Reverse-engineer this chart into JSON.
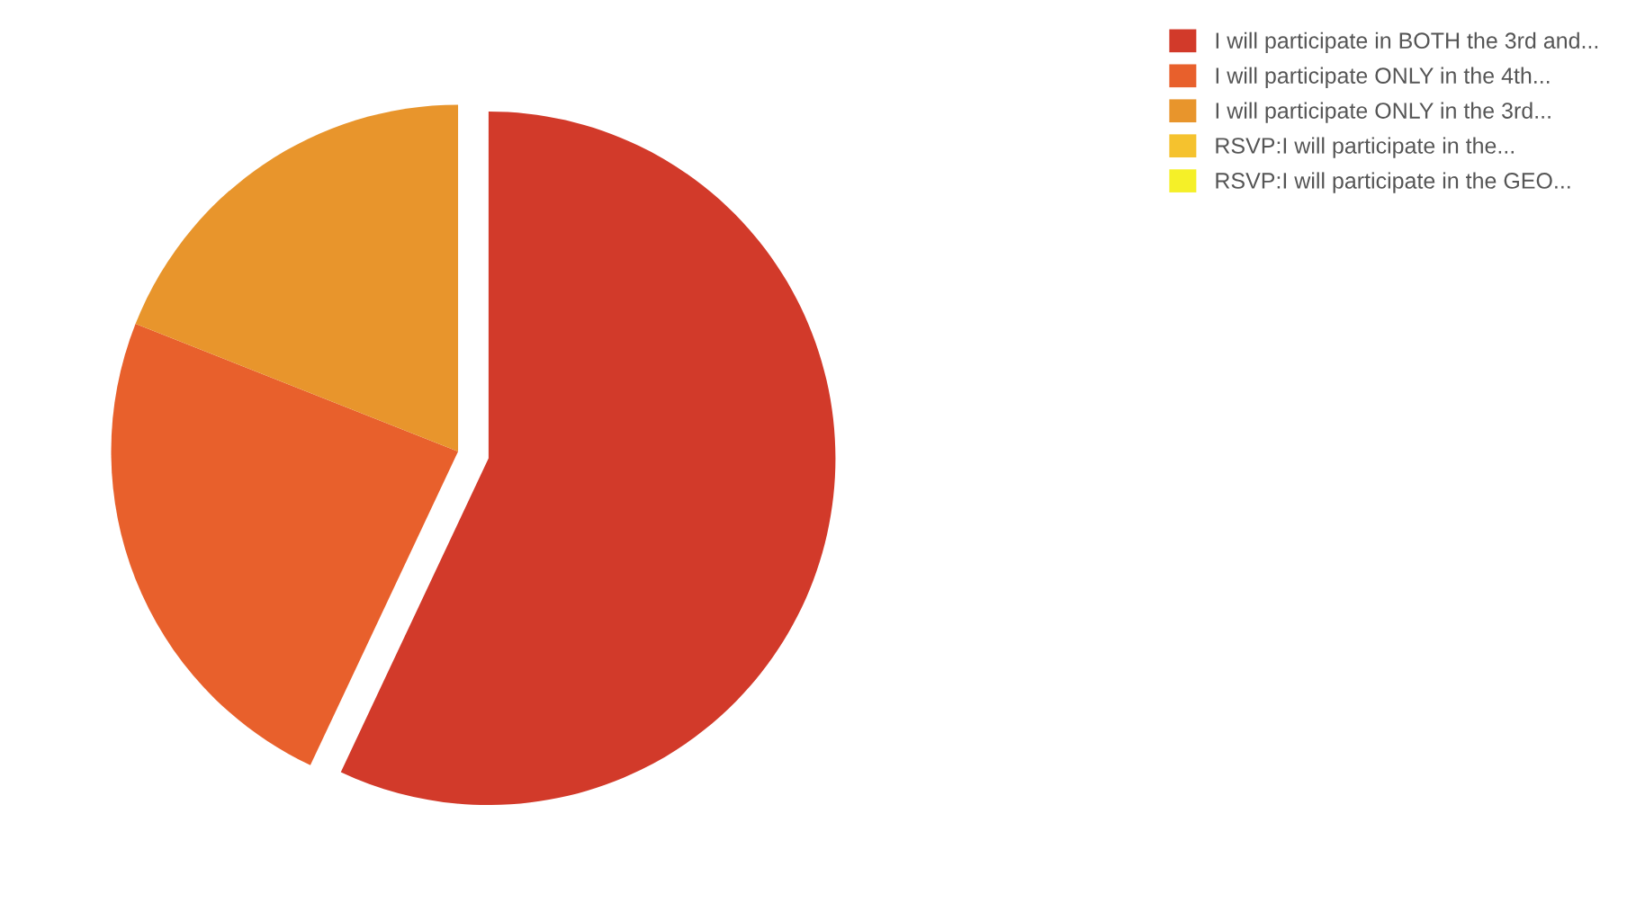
{
  "chart_data": {
    "type": "pie",
    "categories": [
      "I will participate in BOTH the 3rd and...",
      "I will participate ONLY in the 4th...",
      "I will participate ONLY in the 3rd...",
      "RSVP:I will participate in the...",
      "RSVP:I will participate in the GEO..."
    ],
    "values": [
      57,
      24,
      19,
      0,
      0
    ],
    "colors": [
      "#d23a2a",
      "#e8602c",
      "#e8952c",
      "#f5c22e",
      "#f5f028"
    ],
    "legend": "top right"
  }
}
